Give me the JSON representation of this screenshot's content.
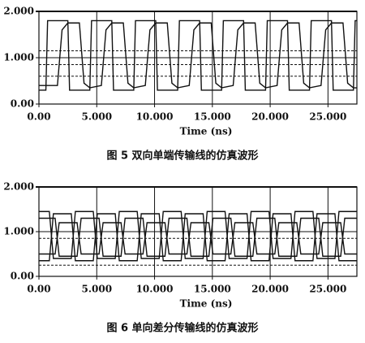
{
  "chart_data": [
    {
      "type": "line",
      "x_label": "Time (ns)",
      "caption": "图 5   双向单端传输线的仿真波形",
      "xlim": [
        0,
        27.5
      ],
      "ylim": [
        0,
        2
      ],
      "xticks": [
        {
          "value": 0,
          "label": "0.00"
        },
        {
          "value": 5,
          "label": "5.000"
        },
        {
          "value": 10,
          "label": "10.000"
        },
        {
          "value": 15,
          "label": "15.000"
        },
        {
          "value": 20,
          "label": "20.000"
        },
        {
          "value": 25,
          "label": "25.000"
        }
      ],
      "yticks": [
        {
          "value": 0,
          "label": "0.00"
        },
        {
          "value": 1,
          "label": "1.000"
        },
        {
          "value": 2,
          "label": "2.000"
        }
      ],
      "hlines": [
        1.15,
        0.85,
        0.6
      ],
      "hline_style": "dashed",
      "series": [
        {
          "color": "#111111",
          "x": [
            0,
            0.6,
            0.75,
            2.5,
            2.65,
            4.4,
            4.55,
            6.3,
            6.45,
            8.2,
            8.35,
            10.1,
            10.25,
            12,
            12.15,
            13.9,
            14.05,
            15.8,
            15.95,
            17.7,
            17.85,
            19.6,
            19.75,
            21.5,
            21.65,
            23.4,
            23.55,
            25.3,
            25.45,
            27.2,
            27.35,
            27.5
          ],
          "values": [
            0.3,
            0.3,
            1.8,
            1.8,
            0.3,
            0.3,
            1.8,
            1.8,
            0.3,
            0.3,
            1.8,
            1.8,
            0.3,
            0.3,
            1.8,
            1.8,
            0.3,
            0.3,
            1.8,
            1.8,
            0.3,
            0.3,
            1.8,
            1.8,
            0.3,
            0.3,
            1.8,
            1.8,
            0.3,
            0.3,
            1.8,
            1.8
          ]
        },
        {
          "color": "#111111",
          "x": [
            0,
            1.6,
            2.0,
            2.5,
            3.5,
            3.9,
            4.4,
            5.4,
            5.8,
            6.3,
            7.3,
            7.7,
            8.2,
            9.2,
            9.6,
            10.1,
            11.1,
            11.5,
            12.0,
            13.0,
            13.4,
            13.9,
            14.9,
            15.3,
            15.8,
            16.8,
            17.2,
            17.7,
            18.7,
            19.1,
            19.6,
            20.6,
            21.0,
            21.5,
            22.5,
            22.9,
            23.4,
            24.4,
            24.8,
            25.3,
            26.3,
            26.7,
            27.2,
            27.5
          ],
          "values": [
            0.4,
            0.4,
            1.6,
            1.75,
            1.75,
            0.45,
            0.35,
            0.4,
            1.6,
            1.75,
            1.75,
            0.45,
            0.35,
            0.4,
            1.6,
            1.75,
            1.75,
            0.45,
            0.35,
            0.4,
            1.6,
            1.75,
            1.75,
            0.45,
            0.35,
            0.4,
            1.6,
            1.75,
            1.75,
            0.45,
            0.35,
            0.4,
            1.6,
            1.75,
            1.75,
            0.45,
            0.35,
            0.4,
            1.6,
            1.75,
            1.75,
            0.45,
            0.35,
            0.35
          ]
        }
      ]
    },
    {
      "type": "line",
      "x_label": "Time (ns)",
      "caption": "图 6   单向差分传输线的仿真波形",
      "xlim": [
        0,
        27.5
      ],
      "ylim": [
        0,
        2
      ],
      "xticks": [
        {
          "value": 0,
          "label": "0.00"
        },
        {
          "value": 5,
          "label": "5.000"
        },
        {
          "value": 10,
          "label": "10.000"
        },
        {
          "value": 15,
          "label": "15.000"
        },
        {
          "value": 20,
          "label": "20.000"
        },
        {
          "value": 25,
          "label": "25.000"
        }
      ],
      "yticks": [
        {
          "value": 0,
          "label": "0.00"
        },
        {
          "value": 1,
          "label": "1.000"
        },
        {
          "value": 2,
          "label": "2.000"
        }
      ],
      "hlines": [
        0.85,
        0.25
      ],
      "hline_style": "dashed",
      "series": [
        {
          "color": "#111111",
          "x": [
            0,
            0.9,
            1.25,
            2.8,
            3.15,
            4.7,
            5.05,
            6.6,
            6.95,
            8.5,
            8.85,
            10.4,
            10.75,
            12.3,
            12.65,
            14.2,
            14.55,
            16.1,
            16.45,
            18.0,
            18.35,
            19.9,
            20.25,
            21.8,
            22.15,
            23.7,
            24.05,
            25.6,
            25.95,
            27.5
          ],
          "values": [
            1.45,
            1.45,
            0.4,
            0.4,
            1.45,
            1.45,
            0.4,
            0.4,
            1.45,
            1.45,
            0.4,
            0.4,
            1.45,
            1.45,
            0.4,
            0.4,
            1.45,
            1.45,
            0.4,
            0.4,
            1.45,
            1.45,
            0.4,
            0.4,
            1.45,
            1.45,
            0.4,
            0.4,
            1.45,
            1.45
          ]
        },
        {
          "color": "#111111",
          "x": [
            0,
            0.9,
            1.25,
            2.8,
            3.15,
            4.7,
            5.05,
            6.6,
            6.95,
            8.5,
            8.85,
            10.4,
            10.75,
            12.3,
            12.65,
            14.2,
            14.55,
            16.1,
            16.45,
            18.0,
            18.35,
            19.9,
            20.25,
            21.8,
            22.15,
            23.7,
            24.05,
            25.6,
            25.95,
            27.5
          ],
          "values": [
            0.35,
            0.35,
            1.4,
            1.4,
            0.35,
            0.35,
            1.4,
            1.4,
            0.35,
            0.35,
            1.4,
            1.4,
            0.35,
            0.35,
            1.4,
            1.4,
            0.35,
            0.35,
            1.4,
            1.4,
            0.35,
            0.35,
            1.4,
            1.4,
            0.35,
            0.35,
            1.4,
            1.4,
            0.35,
            0.35
          ]
        },
        {
          "color": "#111111",
          "x": [
            0,
            1.4,
            1.75,
            3.3,
            3.65,
            5.2,
            5.55,
            7.1,
            7.45,
            9.0,
            9.35,
            10.9,
            11.25,
            12.8,
            13.15,
            14.7,
            15.05,
            16.6,
            16.95,
            18.5,
            18.85,
            20.4,
            20.75,
            22.3,
            22.65,
            24.2,
            24.55,
            26.1,
            26.45,
            27.5
          ],
          "values": [
            1.3,
            1.3,
            0.45,
            0.45,
            1.3,
            1.3,
            0.45,
            0.45,
            1.3,
            1.3,
            0.45,
            0.45,
            1.3,
            1.3,
            0.45,
            0.45,
            1.3,
            1.3,
            0.45,
            0.45,
            1.3,
            1.3,
            0.45,
            0.45,
            1.3,
            1.3,
            0.45,
            0.45,
            1.3,
            1.3
          ]
        },
        {
          "color": "#111111",
          "x": [
            0,
            1.4,
            1.75,
            3.3,
            3.65,
            5.2,
            5.55,
            7.1,
            7.45,
            9.0,
            9.35,
            10.9,
            11.25,
            12.8,
            13.15,
            14.7,
            15.05,
            16.6,
            16.95,
            18.5,
            18.85,
            20.4,
            20.75,
            22.3,
            22.65,
            24.2,
            24.55,
            26.1,
            26.45,
            27.5
          ],
          "values": [
            0.5,
            0.5,
            1.2,
            1.2,
            0.5,
            0.5,
            1.2,
            1.2,
            0.5,
            0.5,
            1.2,
            1.2,
            0.5,
            0.5,
            1.2,
            1.2,
            0.5,
            0.5,
            1.2,
            1.2,
            0.5,
            0.5,
            1.2,
            1.2,
            0.5,
            0.5,
            1.2,
            1.2,
            0.5,
            0.5
          ]
        }
      ]
    }
  ]
}
